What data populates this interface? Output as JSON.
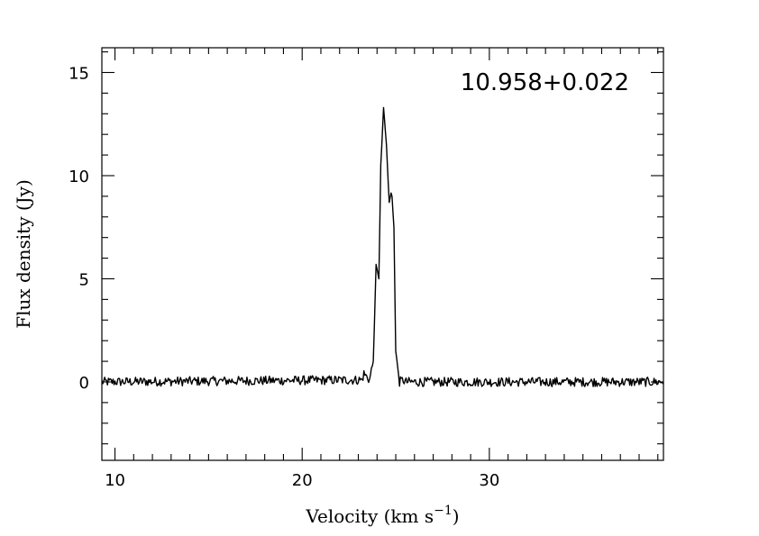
{
  "chart_data": {
    "type": "line",
    "title": "",
    "annotation": "10.958+0.022",
    "xlabel_main": "Velocity (km s",
    "xlabel_sup": "−1",
    "xlabel_close": ")",
    "ylabel": "Flux density (Jy)",
    "xlim": [
      9.3,
      39.3
    ],
    "ylim": [
      -3.8,
      16.2
    ],
    "x_major_ticks": [
      10,
      20,
      30
    ],
    "x_tick_labels": [
      "10",
      "20",
      "30"
    ],
    "y_major_ticks": [
      0,
      5,
      10,
      15
    ],
    "y_tick_labels": [
      "0",
      "5",
      "10",
      "15"
    ],
    "grid": false,
    "legend": "none",
    "series": [
      {
        "x": [
          9.3,
          23.2,
          23.3,
          23.6,
          23.8,
          23.95,
          24.1,
          24.2,
          24.35,
          24.5,
          24.65,
          24.78,
          24.9,
          25.0,
          25.2,
          25.4,
          25.5,
          39.3
        ],
        "y": [
          0.0,
          0.1,
          0.4,
          0.1,
          1.0,
          5.7,
          5.0,
          10.5,
          13.3,
          11.5,
          8.7,
          9.3,
          7.5,
          1.5,
          0.0,
          0.1,
          0.0,
          0.0
        ]
      }
    ]
  }
}
